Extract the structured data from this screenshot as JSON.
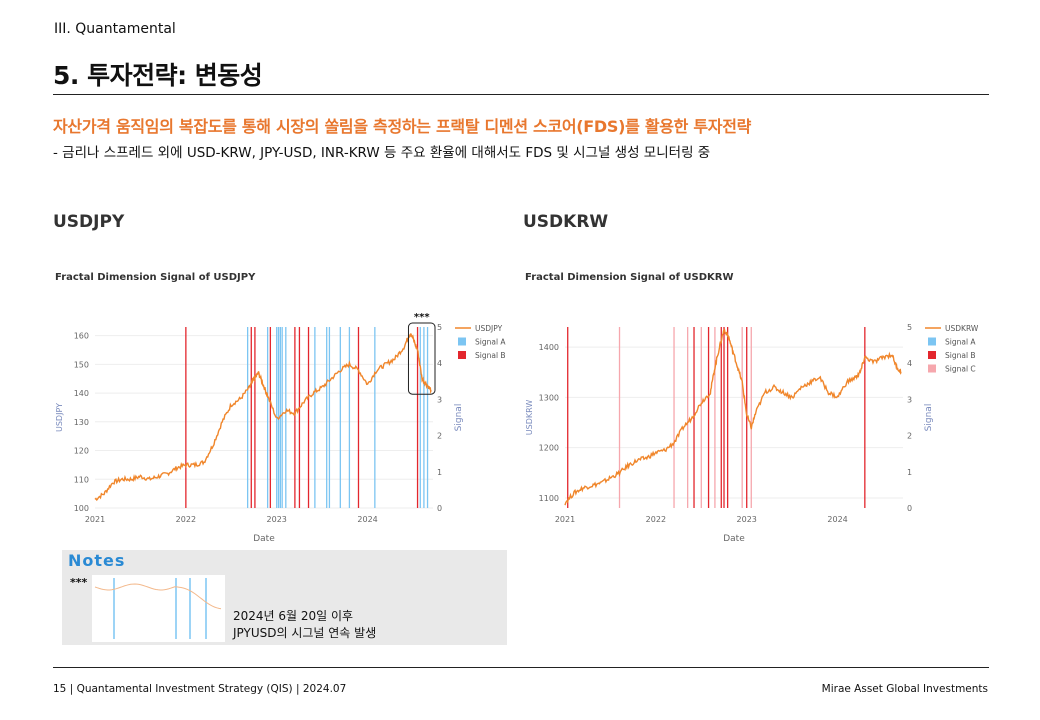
{
  "header": {
    "section": "III. Quantamental",
    "title": "5. 투자전략: 변동성",
    "subtitle": "자산가격 움직임의 복잡도를 통해 시장의 쏠림을 측정하는 프랙탈 디멘션 스코어(FDS)를 활용한 투자전략",
    "bullet": "-  금리나 스프레드 외에 USD-KRW, JPY-USD, INR-KRW 등 주요 환율에 대해서도 FDS 및 시그널 생성 모니터링 중"
  },
  "colors": {
    "accent": "#e8772e",
    "series": "#f0862b",
    "signalA": "#7cc5f2",
    "signalB": "#e3262d",
    "signalC": "#f6a7ad",
    "notes_title": "#2a8ad4"
  },
  "chart_data": [
    {
      "type": "line",
      "heading": "USDJPY",
      "title": "Fractal Dimension Signal of USDJPY",
      "xlabel": "Date",
      "ylabel": "USDJPY",
      "y2label": "Signal",
      "x_ticks": [
        "2021",
        "2022",
        "2023",
        "2024"
      ],
      "ylim": [
        100,
        163
      ],
      "y_ticks": [
        100,
        110,
        120,
        130,
        140,
        150,
        160
      ],
      "y2lim": [
        0,
        5
      ],
      "y2_ticks": [
        0,
        1,
        2,
        3,
        4,
        5
      ],
      "xlim": [
        2021.0,
        2024.72
      ],
      "legend": [
        "USDJPY",
        "Signal A",
        "Signal B"
      ],
      "legend_position": "top-right",
      "series": [
        {
          "name": "USDJPY",
          "x": [
            2021.0,
            2021.1,
            2021.2,
            2021.3,
            2021.4,
            2021.5,
            2021.6,
            2021.7,
            2021.8,
            2021.9,
            2022.0,
            2022.1,
            2022.2,
            2022.3,
            2022.4,
            2022.5,
            2022.6,
            2022.7,
            2022.75,
            2022.8,
            2022.85,
            2022.9,
            2023.0,
            2023.1,
            2023.2,
            2023.3,
            2023.4,
            2023.5,
            2023.6,
            2023.7,
            2023.8,
            2023.9,
            2024.0,
            2024.1,
            2024.2,
            2024.3,
            2024.4,
            2024.47,
            2024.5,
            2024.55,
            2024.6,
            2024.65,
            2024.7
          ],
          "y": [
            103,
            105,
            109,
            110,
            110,
            111,
            110,
            111,
            112,
            114,
            115,
            115,
            116,
            122,
            130,
            136,
            138,
            142,
            145,
            147,
            143,
            139,
            131,
            134,
            133,
            137,
            140,
            142,
            145,
            148,
            150,
            148,
            143,
            148,
            150,
            152,
            156,
            161,
            159,
            155,
            145,
            143,
            141
          ]
        }
      ],
      "signals": {
        "Signal A": [
          2022.68,
          2022.9,
          2023.0,
          2023.02,
          2023.04,
          2023.06,
          2023.1,
          2023.42,
          2023.55,
          2023.58,
          2023.7,
          2023.8,
          2024.08,
          2024.58,
          2024.62,
          2024.66
        ],
        "Signal B": [
          2022.0,
          2022.72,
          2022.76,
          2022.93,
          2023.2,
          2023.25,
          2023.35,
          2023.9,
          2024.55
        ]
      },
      "annotation": "***"
    },
    {
      "type": "line",
      "heading": "USDKRW",
      "title": "Fractal Dimension Signal of USDKRW",
      "xlabel": "Date",
      "ylabel": "USDKRW",
      "y2label": "Signal",
      "x_ticks": [
        "2021",
        "2022",
        "2023",
        "2024"
      ],
      "ylim": [
        1080,
        1440
      ],
      "y_ticks": [
        1100,
        1200,
        1300,
        1400
      ],
      "y2lim": [
        0,
        5
      ],
      "y2_ticks": [
        0,
        1,
        2,
        3,
        4,
        5
      ],
      "xlim": [
        2021.0,
        2024.72
      ],
      "legend": [
        "USDKRW",
        "Signal A",
        "Signal B",
        "Signal C"
      ],
      "legend_position": "top-right",
      "series": [
        {
          "name": "USDKRW",
          "x": [
            2021.0,
            2021.1,
            2021.2,
            2021.3,
            2021.4,
            2021.5,
            2021.6,
            2021.7,
            2021.8,
            2021.9,
            2022.0,
            2022.1,
            2022.2,
            2022.3,
            2022.4,
            2022.5,
            2022.6,
            2022.65,
            2022.7,
            2022.75,
            2022.8,
            2022.85,
            2022.9,
            2022.95,
            2023.0,
            2023.05,
            2023.1,
            2023.2,
            2023.3,
            2023.4,
            2023.5,
            2023.6,
            2023.7,
            2023.8,
            2023.9,
            2024.0,
            2024.1,
            2024.2,
            2024.25,
            2024.3,
            2024.4,
            2024.5,
            2024.6,
            2024.65,
            2024.7
          ],
          "y": [
            1090,
            1110,
            1120,
            1125,
            1130,
            1140,
            1150,
            1165,
            1175,
            1180,
            1190,
            1195,
            1210,
            1240,
            1260,
            1290,
            1310,
            1360,
            1400,
            1435,
            1420,
            1390,
            1360,
            1330,
            1265,
            1240,
            1270,
            1310,
            1320,
            1310,
            1300,
            1320,
            1330,
            1340,
            1310,
            1300,
            1330,
            1340,
            1350,
            1380,
            1370,
            1380,
            1385,
            1360,
            1350
          ]
        }
      ],
      "signals": {
        "Signal A": [],
        "Signal B": [
          2021.03,
          2022.42,
          2022.58,
          2022.72,
          2022.75,
          2022.79,
          2023.0,
          2024.3
        ],
        "Signal C": [
          2021.6,
          2022.2,
          2022.35,
          2022.5,
          2022.65,
          2022.95,
          2023.05
        ]
      }
    }
  ],
  "notes": {
    "title": "Notes",
    "marker": "***",
    "line1": "2024년 6월 20일 이후",
    "line2": "JPYUSD의 시그널 연속 발생"
  },
  "footer": {
    "left": "15 | Quantamental Investment Strategy (QIS) | 2024.07",
    "right": "Mirae Asset Global Investments"
  }
}
